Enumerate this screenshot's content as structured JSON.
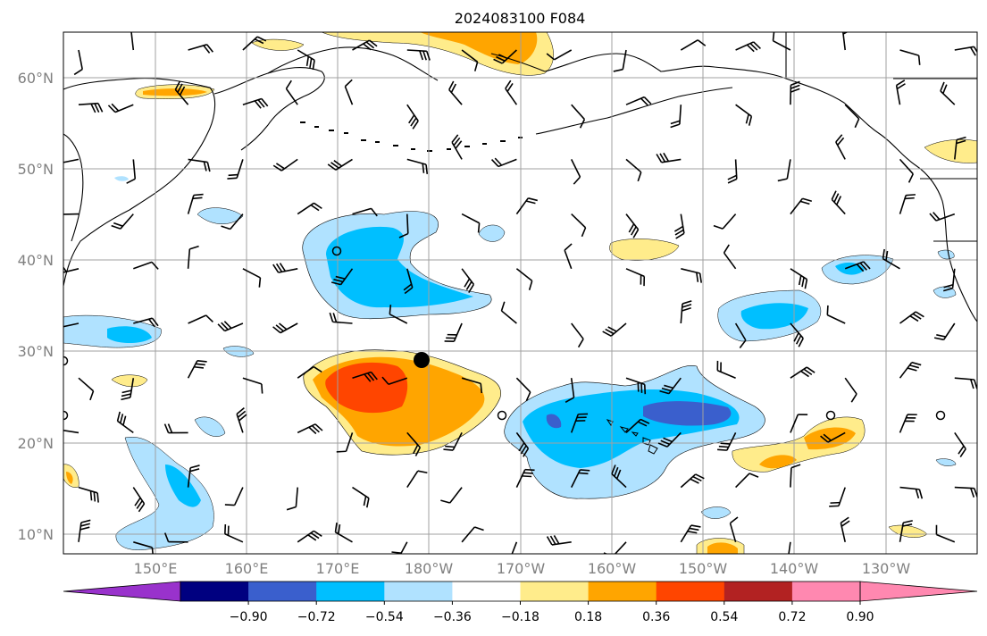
{
  "title": "2024083100 F084",
  "map": {
    "lat_labels": [
      "60°N",
      "50°N",
      "40°N",
      "30°N",
      "20°N",
      "10°N"
    ],
    "lon_labels": [
      "150°E",
      "160°E",
      "170°E",
      "180°W",
      "170°W",
      "160°W",
      "150°W",
      "140°W",
      "130°W"
    ],
    "grid": true,
    "gridline_color": "#a0a0a0",
    "coastline_color": "#000000"
  },
  "colorbar": {
    "extend": "both",
    "tick_labels": [
      "−0.90",
      "−0.72",
      "−0.54",
      "−0.36",
      "−0.18",
      "0.18",
      "0.36",
      "0.54",
      "0.72",
      "0.90"
    ],
    "colors": [
      "#9932cc",
      "#000080",
      "#3a5fcd",
      "#00bfff",
      "#b0e2ff",
      "#ffffff",
      "#ffec8b",
      "#ffa500",
      "#ff4500",
      "#b22222",
      "#ff88b0",
      "#ff88b0"
    ]
  },
  "legend_colors": {
    "under": "#9932cc",
    "over": "#ff88b0"
  },
  "markers": {
    "storm_center": "filled-black-circle",
    "calm_winds": "open-circle"
  }
}
